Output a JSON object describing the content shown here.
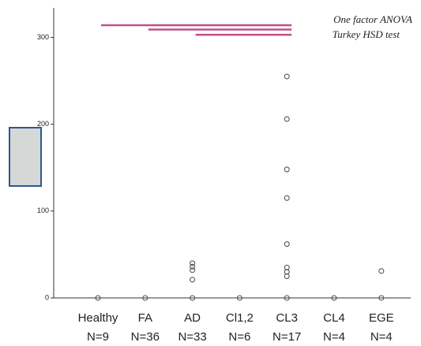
{
  "chart_data": {
    "type": "scatter",
    "annotations": [
      "One factor ANOVA",
      "Turkey HSD test"
    ],
    "categories": [
      "Healthy",
      "FA",
      "AD",
      "Cl1,2",
      "CL3",
      "CL4",
      "EGE"
    ],
    "n_labels": [
      "N=9",
      "N=36",
      "N=33",
      "N=6",
      "N=17",
      "N=4",
      "N=4"
    ],
    "values": [
      [
        0
      ],
      [
        0
      ],
      [
        0,
        21,
        32,
        36,
        40
      ],
      [
        0
      ],
      [
        0,
        25,
        30,
        35,
        62,
        115,
        148,
        206,
        255
      ],
      [
        0
      ],
      [
        0,
        31
      ]
    ],
    "color": "#555555",
    "ylim": [
      0,
      334
    ],
    "yticks": [
      0,
      100,
      200,
      300
    ],
    "brackets": [
      {
        "start": 0,
        "end": 4,
        "value": 314
      },
      {
        "start": 1,
        "end": 4,
        "value": 309
      },
      {
        "start": 2,
        "end": 4,
        "value": 303
      }
    ],
    "bracket_color": "#c0508a"
  }
}
